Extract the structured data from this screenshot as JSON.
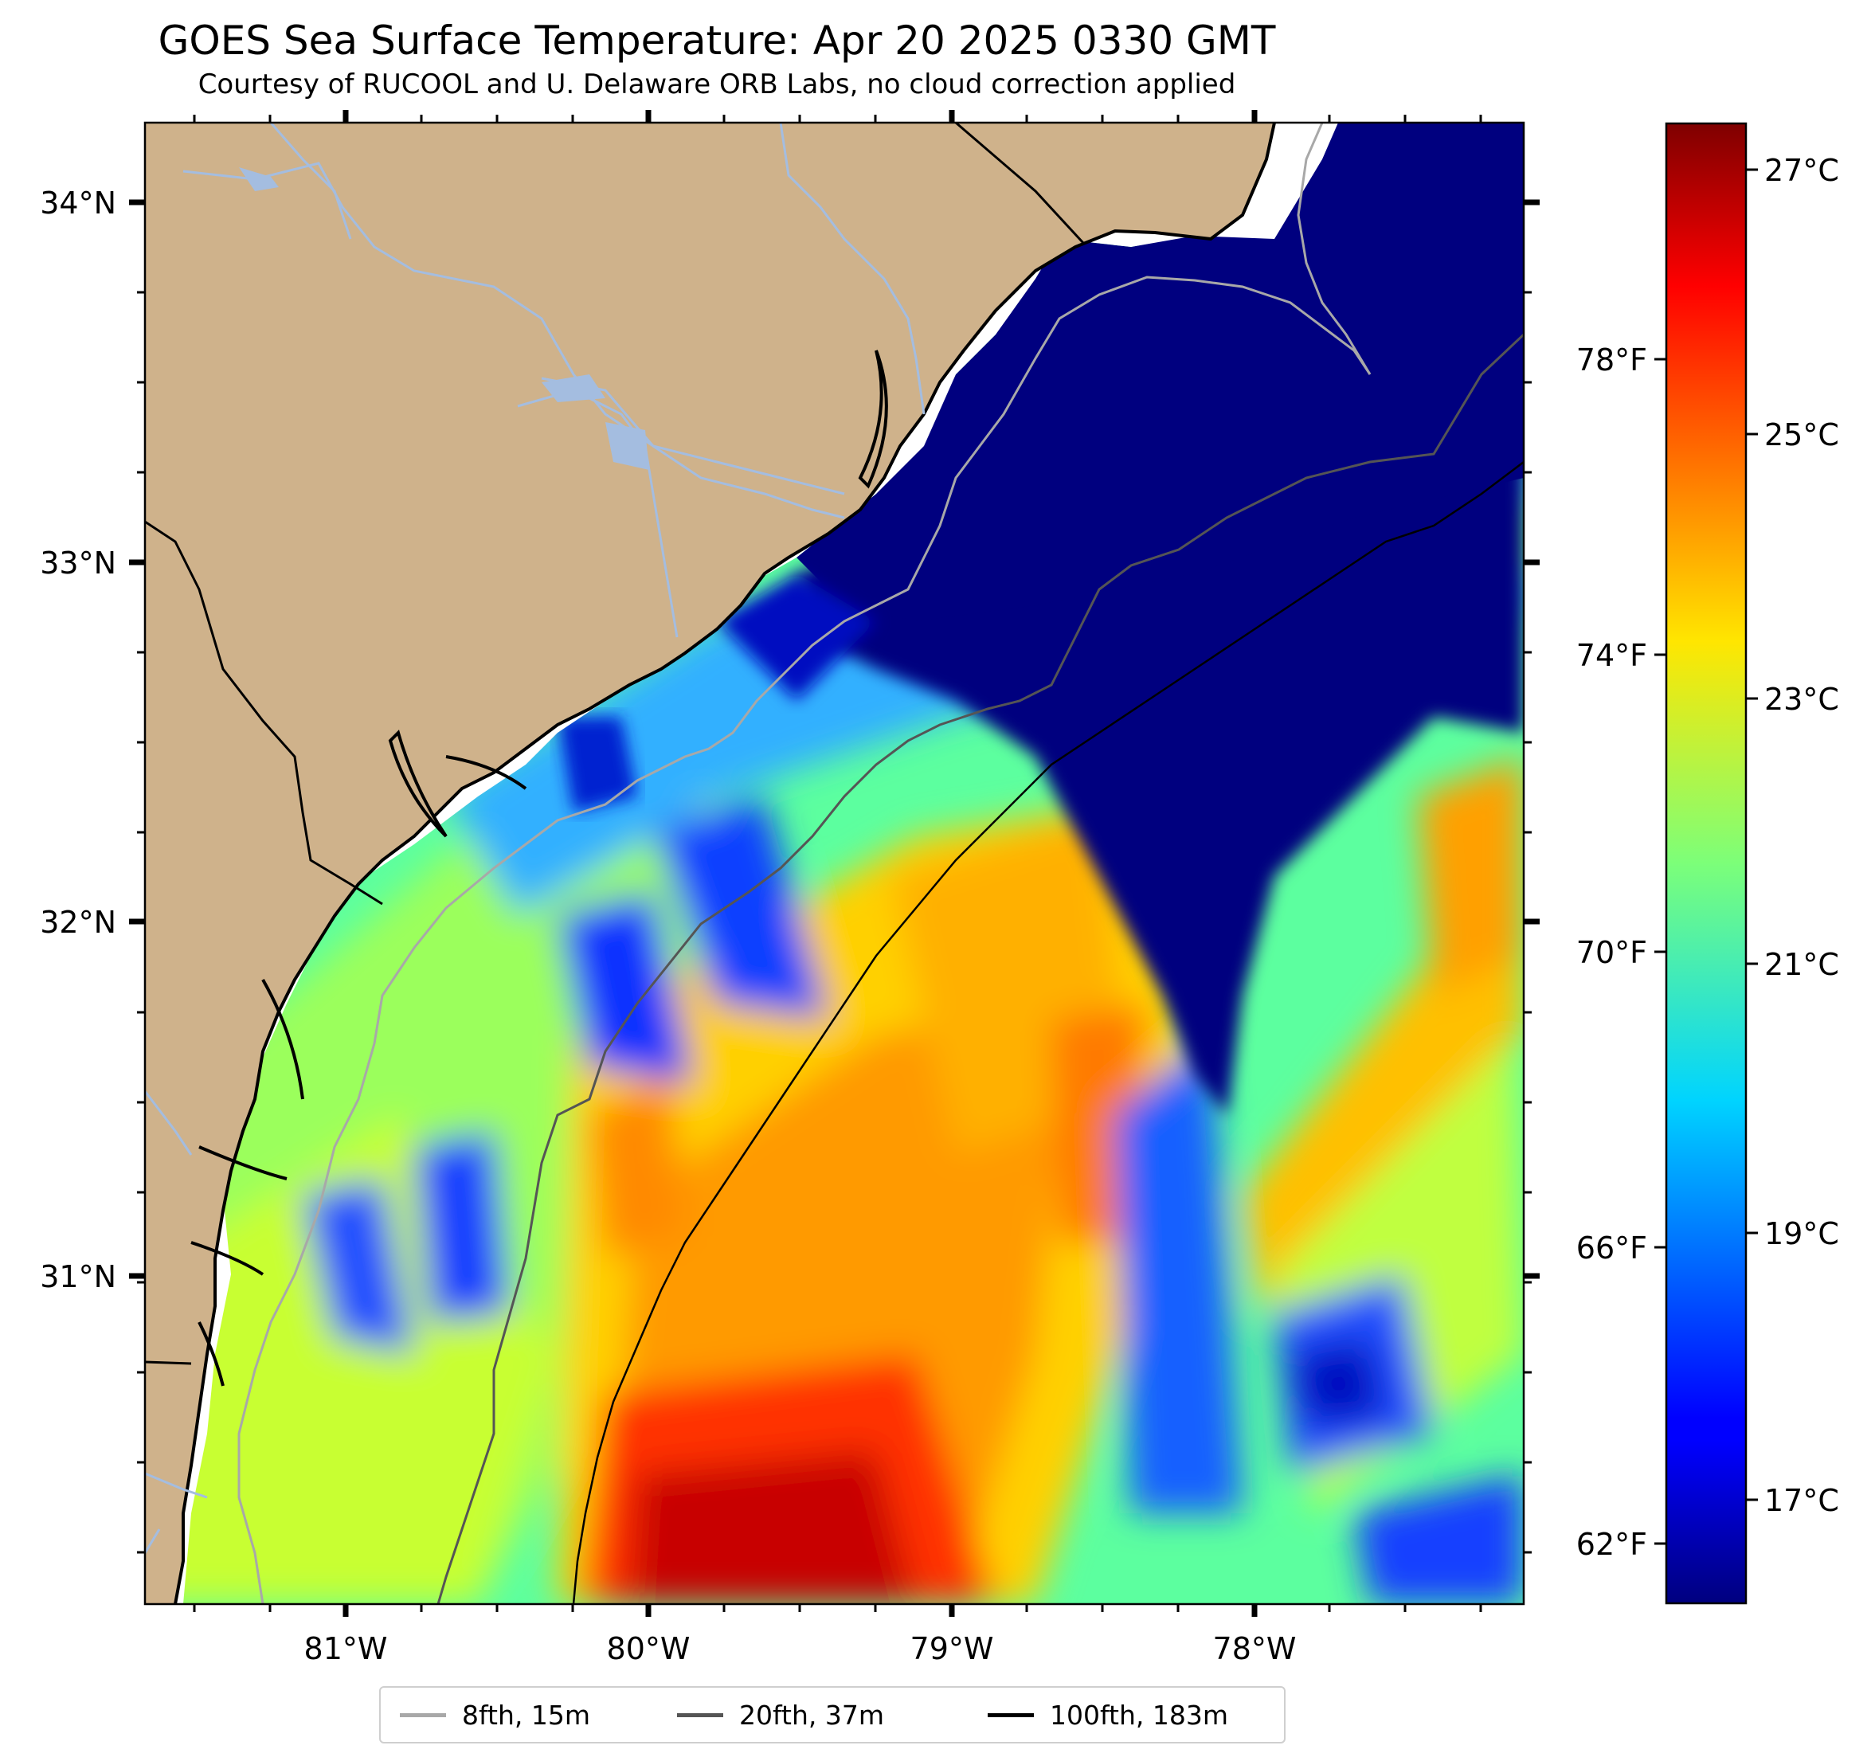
{
  "header": {
    "title": "GOES Sea Surface Temperature: Apr 20 2025 0330 GMT",
    "subtitle": "Courtesy of RUCOOL and U. Delaware ORB Labs, no cloud correction applied"
  },
  "map": {
    "lat_labels": [
      "34°N",
      "33°N",
      "32°N",
      "31°N"
    ],
    "lon_labels": [
      "81°W",
      "80°W",
      "79°W",
      "78°W"
    ],
    "colors": {
      "land": "#cfb28b",
      "cold_water": "#00007f",
      "river": "#a4bde0",
      "no_data": "#ffffff"
    }
  },
  "colorbar": {
    "celsius_labels": [
      "27°C",
      "25°C",
      "23°C",
      "21°C",
      "19°C",
      "17°C"
    ],
    "fahrenheit_labels": [
      "78°F",
      "74°F",
      "70°F",
      "66°F",
      "62°F"
    ],
    "colormap": "jet",
    "range_c": [
      16.2,
      27.4
    ]
  },
  "legend": {
    "items": [
      {
        "label": "8fth, 15m",
        "color": "#a8a8a8"
      },
      {
        "label": "20fth, 37m",
        "color": "#555555"
      },
      {
        "label": "100fth, 183m",
        "color": "#000000"
      }
    ]
  }
}
